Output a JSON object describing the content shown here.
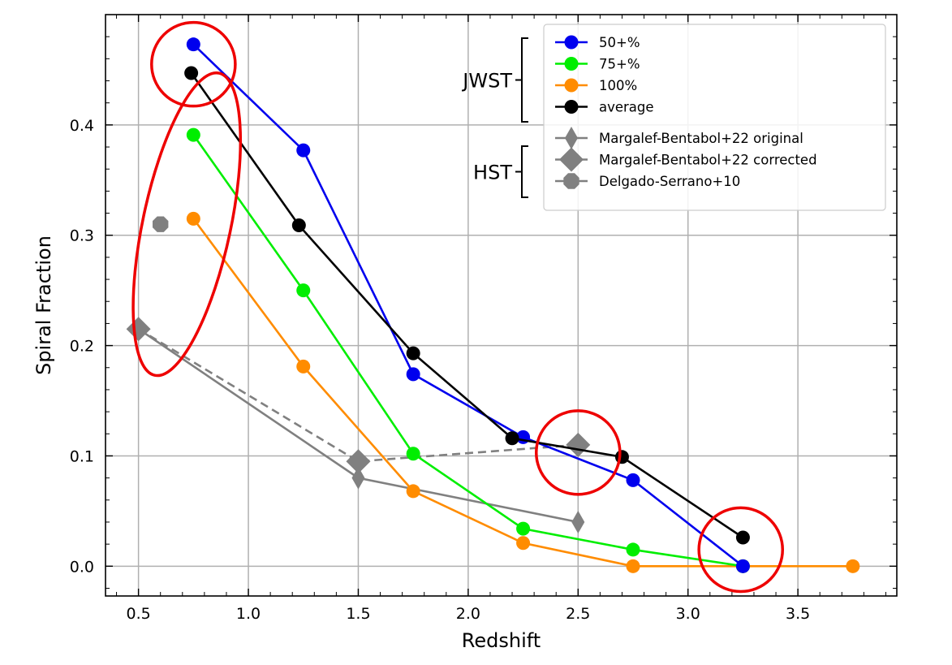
{
  "chart_data": {
    "type": "line",
    "xlabel": "Redshift",
    "ylabel": "Spiral Fraction",
    "xlim": [
      0.35,
      3.95
    ],
    "ylim": [
      -0.027,
      0.5
    ],
    "xticks": [
      0.5,
      1.0,
      1.5,
      2.0,
      2.5,
      3.0,
      3.5
    ],
    "xtick_labels": [
      "0.5",
      "1.0",
      "1.5",
      "2.0",
      "2.5",
      "3.0",
      "3.5"
    ],
    "yticks": [
      0.0,
      0.1,
      0.2,
      0.3,
      0.4
    ],
    "ytick_labels": [
      "0.0",
      "0.1",
      "0.2",
      "0.3",
      "0.4"
    ],
    "grid": true,
    "legend_position": "top-right",
    "series": [
      {
        "name": "50+%",
        "color": "#0000ee",
        "marker": "circle",
        "linestyle": "solid",
        "x": [
          0.75,
          1.25,
          1.75,
          2.25,
          2.75,
          3.25
        ],
        "y": [
          0.473,
          0.377,
          0.174,
          0.117,
          0.078,
          0.0
        ]
      },
      {
        "name": "75+%",
        "color": "#00ee00",
        "marker": "circle",
        "linestyle": "solid",
        "x": [
          0.75,
          1.25,
          1.75,
          2.25,
          2.75,
          3.25
        ],
        "y": [
          0.391,
          0.25,
          0.102,
          0.034,
          0.015,
          0.0
        ]
      },
      {
        "name": "100%",
        "color": "#ff8c00",
        "marker": "circle",
        "linestyle": "solid",
        "x": [
          0.75,
          1.25,
          1.75,
          2.25,
          2.75,
          3.25,
          3.75
        ],
        "y": [
          0.315,
          0.181,
          0.068,
          0.021,
          0.0,
          0.0,
          0.0
        ]
      },
      {
        "name": "average",
        "color": "#000000",
        "marker": "circle",
        "linestyle": "solid",
        "x": [
          0.74,
          1.23,
          1.75,
          2.2,
          2.7,
          3.25
        ],
        "y": [
          0.447,
          0.309,
          0.193,
          0.116,
          0.099,
          0.026
        ]
      },
      {
        "name": "Margalef-Bentabol+22 original",
        "color": "#808080",
        "marker": "thin-diamond",
        "linestyle": "solid",
        "x": [
          0.5,
          1.5,
          2.5
        ],
        "y": [
          0.215,
          0.08,
          0.04
        ]
      },
      {
        "name": "Margalef-Bentabol+22 corrected",
        "color": "#808080",
        "marker": "diamond",
        "linestyle": "dashed",
        "x": [
          0.5,
          1.5,
          2.5
        ],
        "y": [
          0.215,
          0.095,
          0.11
        ]
      },
      {
        "name": "Delgado-Serrano+10",
        "color": "#808080",
        "marker": "octagon",
        "linestyle": "none",
        "x": [
          0.6
        ],
        "y": [
          0.31
        ]
      }
    ],
    "legend_groups": [
      {
        "label": "JWST",
        "series": [
          "50+%",
          "75+%",
          "100%",
          "average"
        ]
      },
      {
        "label": "HST",
        "series": [
          "Margalef-Bentabol+22 original",
          "Margalef-Bentabol+22 corrected",
          "Delgado-Serrano+10"
        ]
      }
    ],
    "annotations": [
      {
        "shape": "ellipse",
        "color": "#ee0000",
        "cx": 0.72,
        "cy": 0.31,
        "rx": 0.2,
        "ry": 0.14,
        "rotation_deg": 12
      },
      {
        "shape": "ellipse",
        "color": "#ee0000",
        "cx": 0.75,
        "cy": 0.455,
        "rx": 0.18,
        "ry": 0.04,
        "rotation_deg": 0
      },
      {
        "shape": "ellipse",
        "color": "#ee0000",
        "cx": 2.5,
        "cy": 0.103,
        "rx": 0.18,
        "ry": 0.04,
        "rotation_deg": 0
      },
      {
        "shape": "ellipse",
        "color": "#ee0000",
        "cx": 3.24,
        "cy": 0.015,
        "rx": 0.18,
        "ry": 0.04,
        "rotation_deg": 0
      }
    ]
  }
}
